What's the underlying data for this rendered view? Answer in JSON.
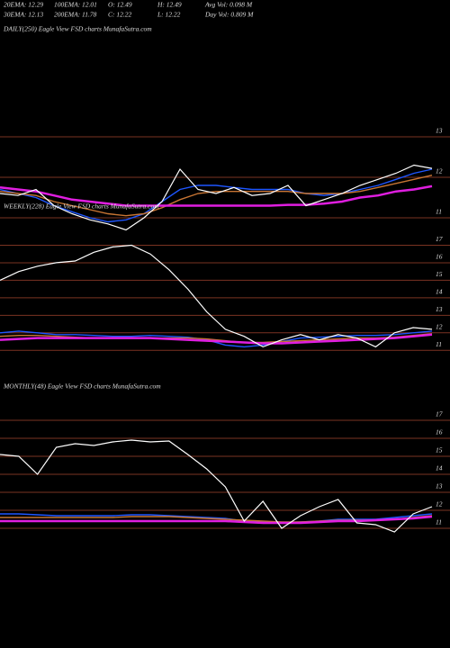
{
  "header": {
    "row1": [
      "20EMA: 12.29",
      "100EMA: 12.01",
      "O: 12.49",
      "H: 12.49",
      "Avg Vol: 0.098 M"
    ],
    "row2": [
      "30EMA: 12.13",
      "200EMA: 11.78",
      "C: 12.22",
      "L: 12.22",
      "Day Vol: 0.809 M"
    ]
  },
  "chart_data": [
    {
      "type": "line",
      "title": "DAILY(250) Eagle  View  FSD charts MunafaSutra.com",
      "ylim": [
        10.5,
        13.5
      ],
      "yticks": [
        13,
        12,
        11
      ],
      "grid": true,
      "series": [
        {
          "color": "#1e56ff",
          "values": [
            11.7,
            11.6,
            11.5,
            11.3,
            11.15,
            11.0,
            10.9,
            10.95,
            11.1,
            11.4,
            11.7,
            11.8,
            11.8,
            11.75,
            11.7,
            11.7,
            11.7,
            11.6,
            11.55,
            11.6,
            11.7,
            11.8,
            11.95,
            12.1,
            12.2
          ]
        },
        {
          "color": "#c87533",
          "values": [
            11.65,
            11.6,
            11.55,
            11.4,
            11.3,
            11.2,
            11.1,
            11.05,
            11.1,
            11.25,
            11.45,
            11.6,
            11.65,
            11.65,
            11.65,
            11.65,
            11.65,
            11.6,
            11.6,
            11.6,
            11.65,
            11.75,
            11.85,
            11.95,
            12.05
          ]
        },
        {
          "color": "#e01ee0",
          "values": [
            11.75,
            11.7,
            11.65,
            11.55,
            11.45,
            11.4,
            11.35,
            11.3,
            11.3,
            11.3,
            11.3,
            11.3,
            11.3,
            11.3,
            11.3,
            11.3,
            11.32,
            11.32,
            11.35,
            11.4,
            11.5,
            11.55,
            11.65,
            11.7,
            11.78
          ]
        },
        {
          "color": "#ffffff",
          "values": [
            11.6,
            11.55,
            11.7,
            11.3,
            11.1,
            10.95,
            10.85,
            10.7,
            11.0,
            11.4,
            12.2,
            11.7,
            11.6,
            11.75,
            11.55,
            11.6,
            11.8,
            11.3,
            11.45,
            11.6,
            11.8,
            11.95,
            12.1,
            12.3,
            12.22
          ]
        }
      ]
    },
    {
      "type": "line",
      "title": "WEEKLY(228) Eagle  View  FSD charts MunafaSutra.com",
      "ylim": [
        10.5,
        17.5
      ],
      "yticks": [
        17,
        16,
        15,
        14,
        13,
        12,
        11
      ],
      "grid": true,
      "series": [
        {
          "color": "#1e56ff",
          "values": [
            12.0,
            12.1,
            12.0,
            11.9,
            11.9,
            11.85,
            11.8,
            11.8,
            11.85,
            11.8,
            11.75,
            11.6,
            11.3,
            11.2,
            11.3,
            11.5,
            11.7,
            11.75,
            11.8,
            11.85,
            11.85,
            11.9,
            12.0,
            12.1
          ]
        },
        {
          "color": "#c87533",
          "values": [
            11.8,
            11.85,
            11.85,
            11.8,
            11.75,
            11.7,
            11.7,
            11.7,
            11.7,
            11.7,
            11.7,
            11.65,
            11.55,
            11.45,
            11.45,
            11.5,
            11.55,
            11.6,
            11.65,
            11.7,
            11.7,
            11.75,
            11.85,
            11.95
          ]
        },
        {
          "color": "#e01ee0",
          "values": [
            11.6,
            11.65,
            11.7,
            11.7,
            11.7,
            11.7,
            11.7,
            11.7,
            11.7,
            11.65,
            11.6,
            11.55,
            11.5,
            11.45,
            11.4,
            11.4,
            11.45,
            11.5,
            11.55,
            11.6,
            11.65,
            11.7,
            11.8,
            11.9
          ]
        },
        {
          "color": "#ffffff",
          "values": [
            15.0,
            15.5,
            15.8,
            16.0,
            16.1,
            16.6,
            16.9,
            17.0,
            16.5,
            15.6,
            14.5,
            13.2,
            12.2,
            11.8,
            11.2,
            11.6,
            11.9,
            11.6,
            11.9,
            11.7,
            11.2,
            12.0,
            12.3,
            12.2
          ]
        }
      ]
    },
    {
      "type": "line",
      "title": "MONTHLY(48) Eagle  View  FSD charts MunafaSutra.com",
      "ylim": [
        10.5,
        17.5
      ],
      "yticks": [
        17,
        16,
        15,
        14,
        13,
        12,
        11
      ],
      "grid": true,
      "series": [
        {
          "color": "#1e56ff",
          "values": [
            11.8,
            11.8,
            11.75,
            11.7,
            11.7,
            11.7,
            11.7,
            11.75,
            11.75,
            11.7,
            11.65,
            11.6,
            11.55,
            11.4,
            11.35,
            11.3,
            11.35,
            11.4,
            11.5,
            11.5,
            11.5,
            11.6,
            11.7,
            11.8
          ]
        },
        {
          "color": "#c87533",
          "values": [
            11.6,
            11.6,
            11.6,
            11.6,
            11.6,
            11.6,
            11.6,
            11.65,
            11.65,
            11.65,
            11.6,
            11.55,
            11.5,
            11.45,
            11.4,
            11.35,
            11.35,
            11.4,
            11.45,
            11.45,
            11.45,
            11.5,
            11.6,
            11.7
          ]
        },
        {
          "color": "#e01ee0",
          "values": [
            11.4,
            11.4,
            11.4,
            11.4,
            11.4,
            11.4,
            11.4,
            11.4,
            11.4,
            11.4,
            11.4,
            11.4,
            11.4,
            11.35,
            11.3,
            11.3,
            11.3,
            11.35,
            11.4,
            11.4,
            11.45,
            11.5,
            11.55,
            11.65
          ]
        },
        {
          "color": "#ffffff",
          "values": [
            15.1,
            15.0,
            14.0,
            15.5,
            15.7,
            15.6,
            15.8,
            15.9,
            15.8,
            15.85,
            15.1,
            14.3,
            13.3,
            11.4,
            12.5,
            11.0,
            11.7,
            12.2,
            12.6,
            11.3,
            11.2,
            10.8,
            11.8,
            12.2
          ]
        }
      ]
    }
  ]
}
